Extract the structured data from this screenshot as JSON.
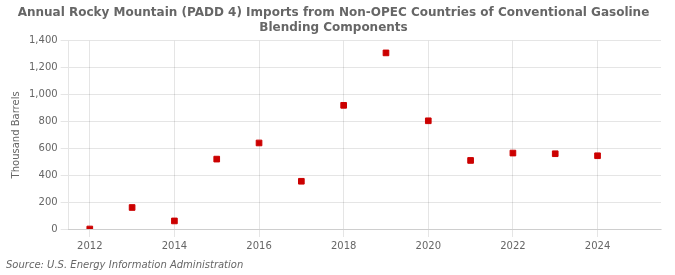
{
  "chart_data": {
    "type": "scatter",
    "title": "Annual Rocky Mountain (PADD 4) Imports from Non-OPEC Countries of Conventional Gasoline\nBlending Components",
    "ylabel": "Thousand Barrels",
    "annotation": "Source: U.S. Energy Information Administration",
    "x": [
      2012,
      2013,
      2014,
      2015,
      2016,
      2017,
      2018,
      2019,
      2020,
      2021,
      2022,
      2023,
      2024
    ],
    "values": [
      0,
      160,
      60,
      520,
      640,
      355,
      920,
      1310,
      805,
      510,
      565,
      560,
      545
    ],
    "color": "#cc0000",
    "marker": "square",
    "xlim": [
      2011.5,
      2025.5
    ],
    "xticks": [
      2012,
      2014,
      2016,
      2018,
      2020,
      2022,
      2024
    ],
    "ylim": [
      0,
      1400
    ],
    "yticks": [
      0,
      200,
      400,
      600,
      800,
      {
        "value": 1000,
        "label": "1,000"
      },
      {
        "value": 1200,
        "label": "1,200"
      },
      {
        "value": 1400,
        "label": "1,400"
      }
    ],
    "grid": true
  }
}
